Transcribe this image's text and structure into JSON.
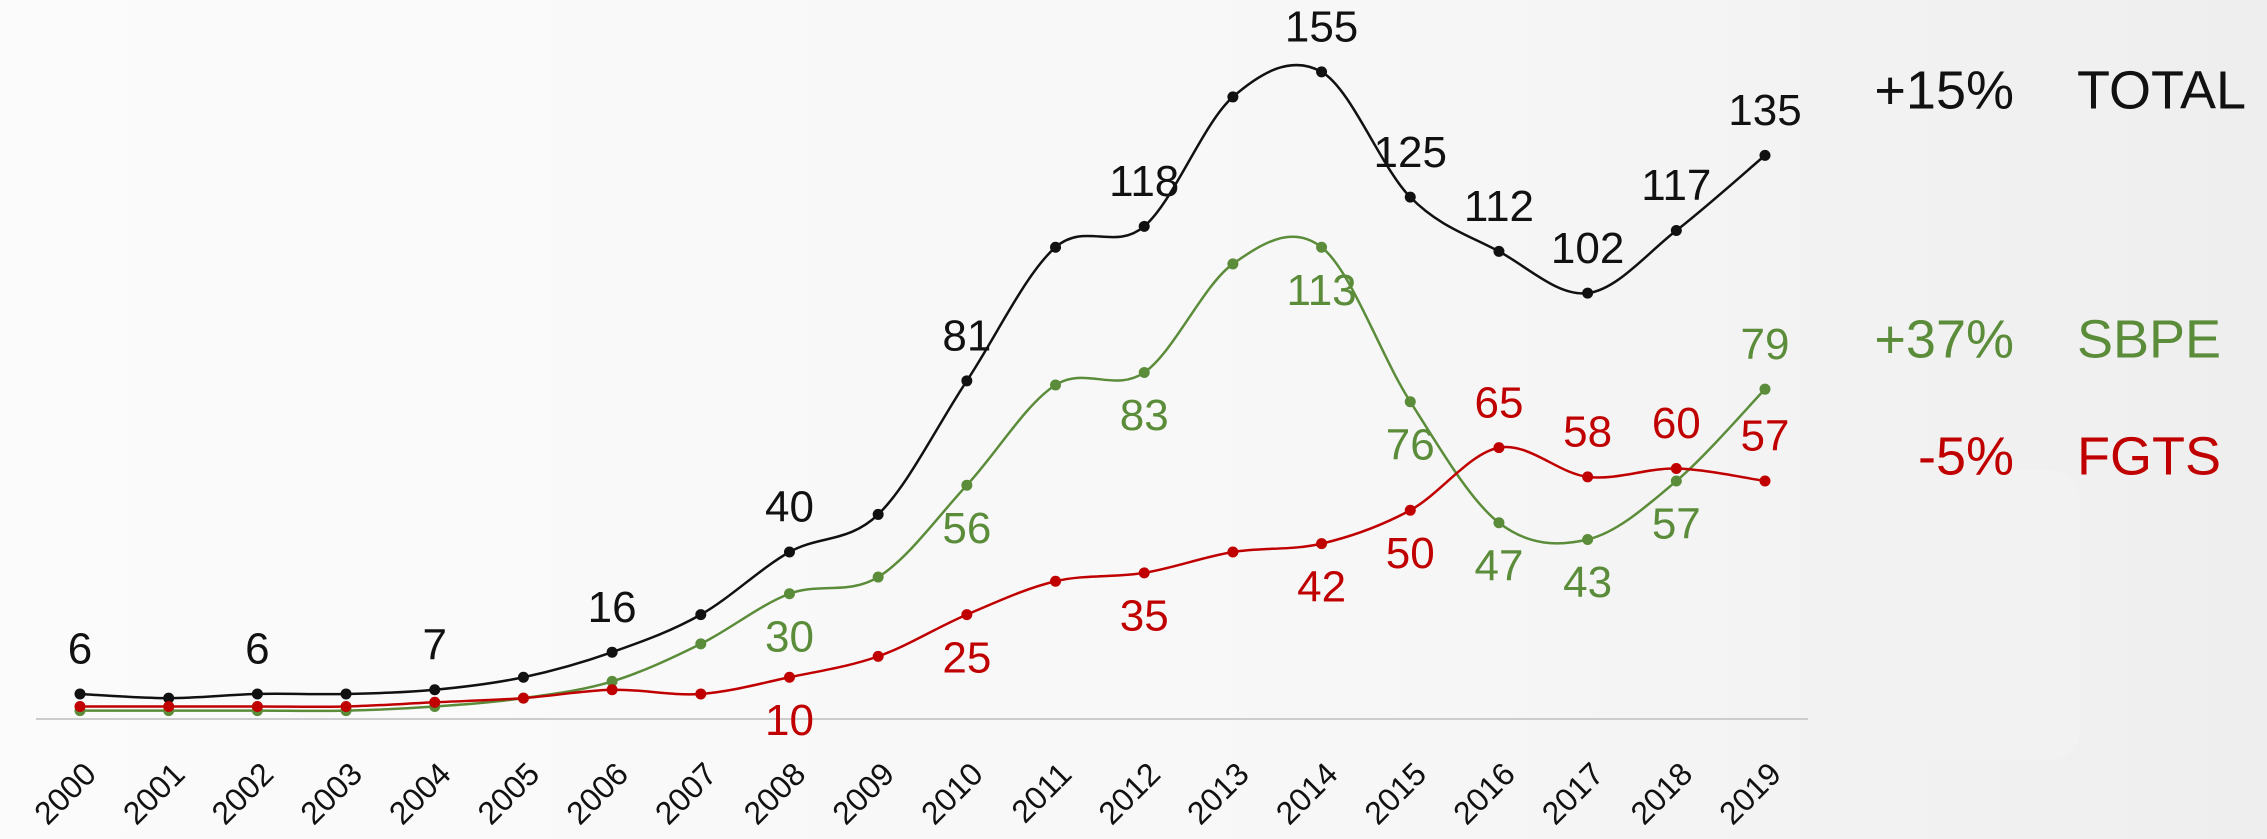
{
  "chart_data": {
    "type": "line",
    "categories": [
      "2000",
      "2001",
      "2002",
      "2003",
      "2004",
      "2005",
      "2006",
      "2007",
      "2008",
      "2009",
      "2010",
      "2011",
      "2012",
      "2013",
      "2014",
      "2015",
      "2016",
      "2017",
      "2018",
      "2019"
    ],
    "series": [
      {
        "name": "TOTAL",
        "change": "+15%",
        "color": "#111111",
        "values": [
          6,
          5,
          6,
          6,
          7,
          10,
          16,
          25,
          40,
          49,
          81,
          113,
          118,
          149,
          155,
          125,
          112,
          102,
          117,
          135
        ],
        "value_labels": [
          "6",
          null,
          "6",
          null,
          "7",
          null,
          "16",
          null,
          "40",
          null,
          "81",
          null,
          "118",
          null,
          "155",
          "125",
          "112",
          "102",
          "117",
          "135"
        ]
      },
      {
        "name": "SBPE",
        "change": "+37%",
        "color": "#5b8c3a",
        "values": [
          2,
          2,
          2,
          2,
          3,
          5,
          9,
          18,
          30,
          34,
          56,
          80,
          83,
          109,
          113,
          76,
          47,
          43,
          57,
          79
        ],
        "value_labels": [
          null,
          null,
          null,
          null,
          null,
          null,
          null,
          null,
          "30",
          null,
          "56",
          null,
          "83",
          null,
          "113",
          "76",
          "47",
          "43",
          "57",
          "79"
        ]
      },
      {
        "name": "FGTS",
        "change": "-5%",
        "color": "#c00000",
        "values": [
          3,
          3,
          3,
          3,
          4,
          5,
          7,
          6,
          10,
          15,
          25,
          33,
          35,
          40,
          42,
          50,
          65,
          58,
          60,
          57
        ],
        "value_labels": [
          null,
          null,
          null,
          null,
          null,
          null,
          null,
          null,
          "10",
          null,
          "25",
          null,
          "35",
          null,
          "42",
          "50",
          "65",
          "58",
          "60",
          "57"
        ]
      }
    ],
    "ylim": [
      0,
      160
    ]
  }
}
